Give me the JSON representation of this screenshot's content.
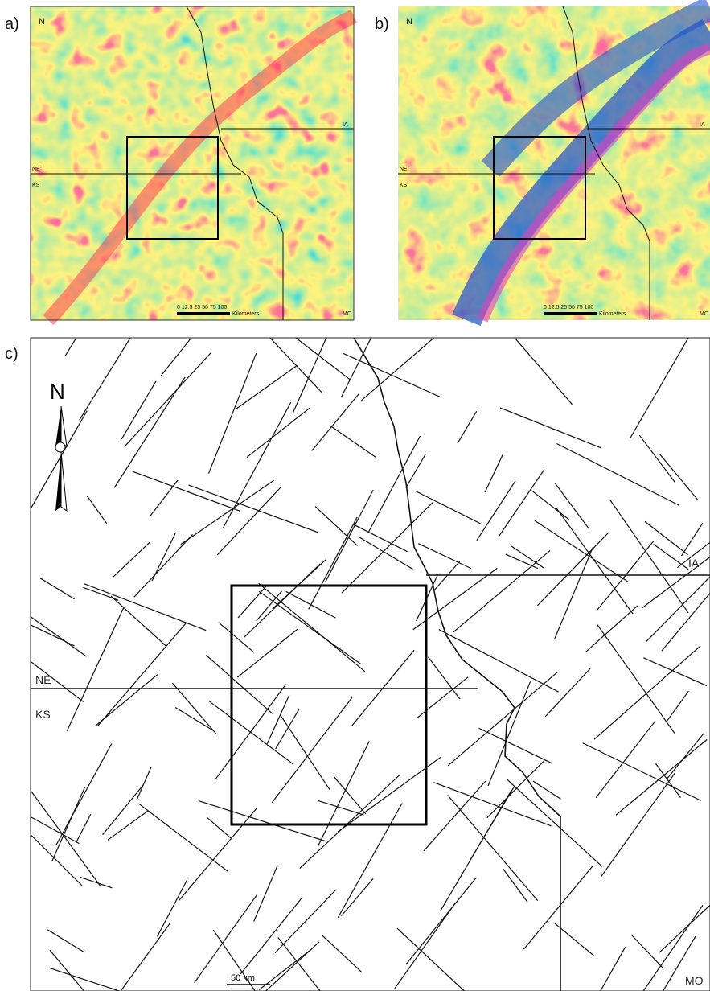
{
  "panels": [
    {
      "label": "a)",
      "north": "N",
      "states": [
        "NE",
        "KS",
        "IA",
        "MO"
      ],
      "scale_numbers": "0 12.5 25 50 75 100",
      "scale_unit": "Kilometers"
    },
    {
      "label": "b)",
      "north": "N",
      "states": [
        "NE",
        "KS",
        "IA",
        "MO"
      ],
      "scale_numbers": "0 12.5 25 50 75 100",
      "scale_unit": "Kilometers"
    },
    {
      "label": "c)",
      "north": "N",
      "states": [
        "NE",
        "KS",
        "IA",
        "MO"
      ],
      "scale_unit": "50 km"
    }
  ]
}
